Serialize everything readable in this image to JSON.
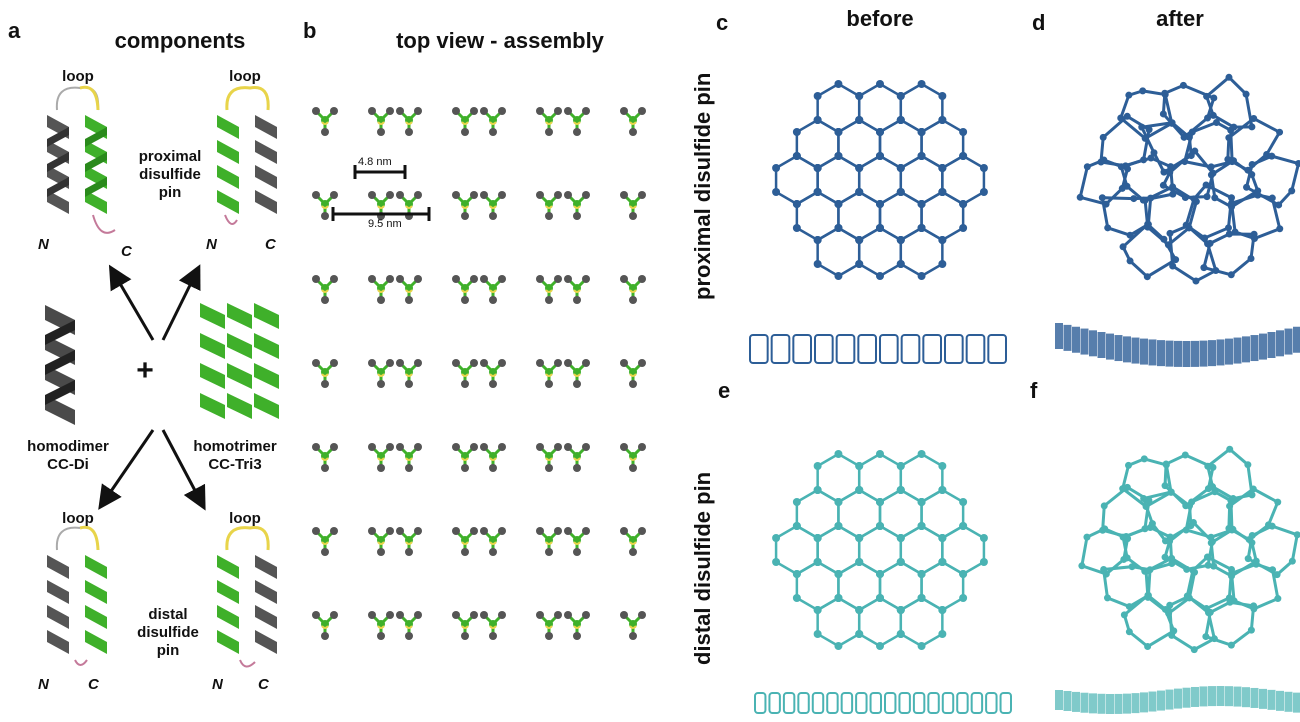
{
  "panel_letters": {
    "a": "a",
    "b": "b",
    "c": "c",
    "d": "d",
    "e": "e",
    "f": "f"
  },
  "headings": {
    "components": "components",
    "top_view": "top view - assembly",
    "before": "before",
    "after": "after"
  },
  "row_labels": {
    "proximal": "proximal disulfide pin",
    "distal": "distal disulfide pin"
  },
  "components": {
    "loop_label": "loop",
    "n_terminus": "N",
    "c_terminus": "C",
    "proximal_label": [
      "proximal",
      "disulfide",
      "pin"
    ],
    "distal_label": [
      "distal",
      "disulfide",
      "pin"
    ],
    "plus": "+",
    "homodimer": [
      "homodimer",
      "CC-Di"
    ],
    "homotrimer": [
      "homotrimer",
      "CC-Tri3"
    ]
  },
  "assembly": {
    "measure_small": "4.8 nm",
    "measure_large": "9.5 nm"
  },
  "colors": {
    "dimer_gray": "#555555",
    "trimer_green": "#3fb02a",
    "loop_yellow": "#e8d44a",
    "proximal_blue": "#2d5e97",
    "distal_cyan": "#4ab3b3"
  }
}
